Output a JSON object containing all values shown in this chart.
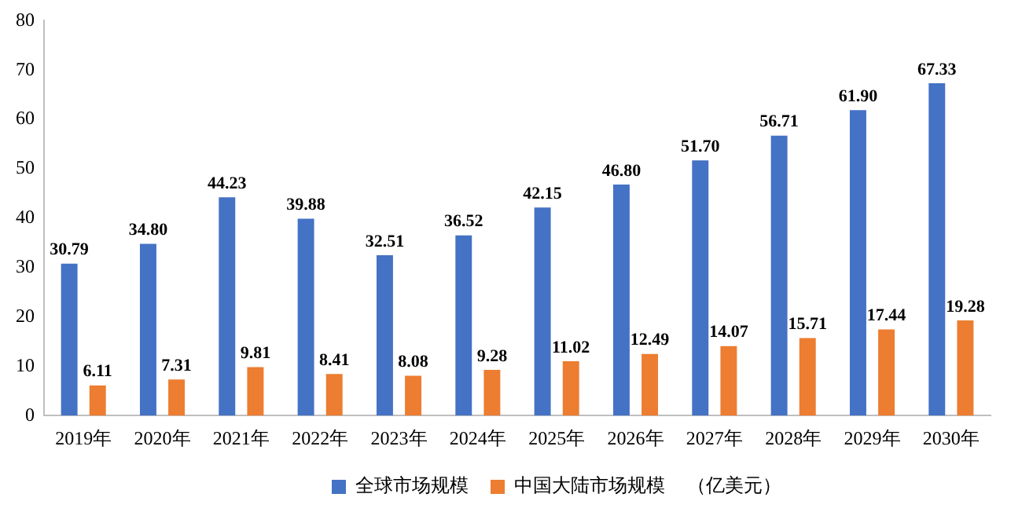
{
  "chart_data": {
    "type": "bar",
    "categories": [
      "2019年",
      "2020年",
      "2021年",
      "2022年",
      "2023年",
      "2024年",
      "2025年",
      "2026年",
      "2027年",
      "2028年",
      "2029年",
      "2030年"
    ],
    "series": [
      {
        "name": "全球市场规模",
        "color": "#4472c4",
        "values": [
          30.79,
          34.8,
          44.23,
          39.88,
          32.51,
          36.52,
          42.15,
          46.8,
          51.7,
          56.71,
          61.9,
          67.33
        ],
        "value_labels": [
          "30.79",
          "34.80",
          "44.23",
          "39.88",
          "32.51",
          "36.52",
          "42.15",
          "46.80",
          "51.70",
          "56.71",
          "61.90",
          "67.33"
        ]
      },
      {
        "name": "中国大陆市场规模",
        "color": "#ed7d31",
        "values": [
          6.11,
          7.31,
          9.81,
          8.41,
          8.08,
          9.28,
          11.02,
          12.49,
          14.07,
          15.71,
          17.44,
          19.28
        ],
        "value_labels": [
          "6.11",
          "7.31",
          "9.81",
          "8.41",
          "8.08",
          "9.28",
          "11.02",
          "12.49",
          "14.07",
          "15.71",
          "17.44",
          "19.28"
        ]
      }
    ],
    "ylim": [
      0,
      80
    ],
    "yticks": [
      0,
      10,
      20,
      30,
      40,
      50,
      60,
      70,
      80
    ],
    "grid": false,
    "legend": "bottom",
    "annotations": [
      "（亿美元）"
    ]
  }
}
